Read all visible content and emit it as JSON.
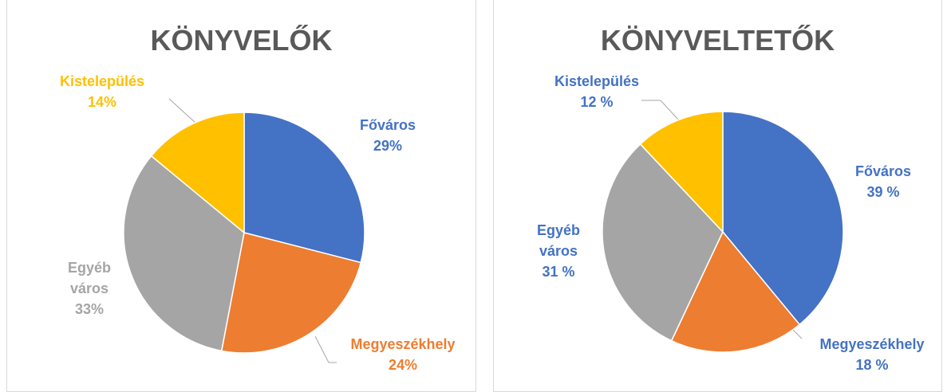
{
  "chart_data": [
    {
      "type": "pie",
      "title": "KÖNYVELŐK",
      "categories": [
        "Főváros",
        "Megyeszékhely",
        "Egyéb város",
        "Kistelepülés"
      ],
      "values": [
        29,
        24,
        33,
        14
      ],
      "value_labels": [
        "29%",
        "24%",
        "33%",
        "14%"
      ],
      "colors": [
        "#4472c4",
        "#ed7d31",
        "#a5a5a5",
        "#ffc000"
      ]
    },
    {
      "type": "pie",
      "title": "KÖNYVELTETŐK",
      "categories": [
        "Főváros",
        "Megyeszékhely",
        "Egyéb város",
        "Kistelepülés"
      ],
      "values": [
        39,
        18,
        31,
        12
      ],
      "value_labels": [
        "39 %",
        "18 %",
        "31 %",
        "12 %"
      ],
      "colors": [
        "#4472c4",
        "#ed7d31",
        "#a5a5a5",
        "#ffc000"
      ],
      "label_color": "#4472c4"
    }
  ]
}
